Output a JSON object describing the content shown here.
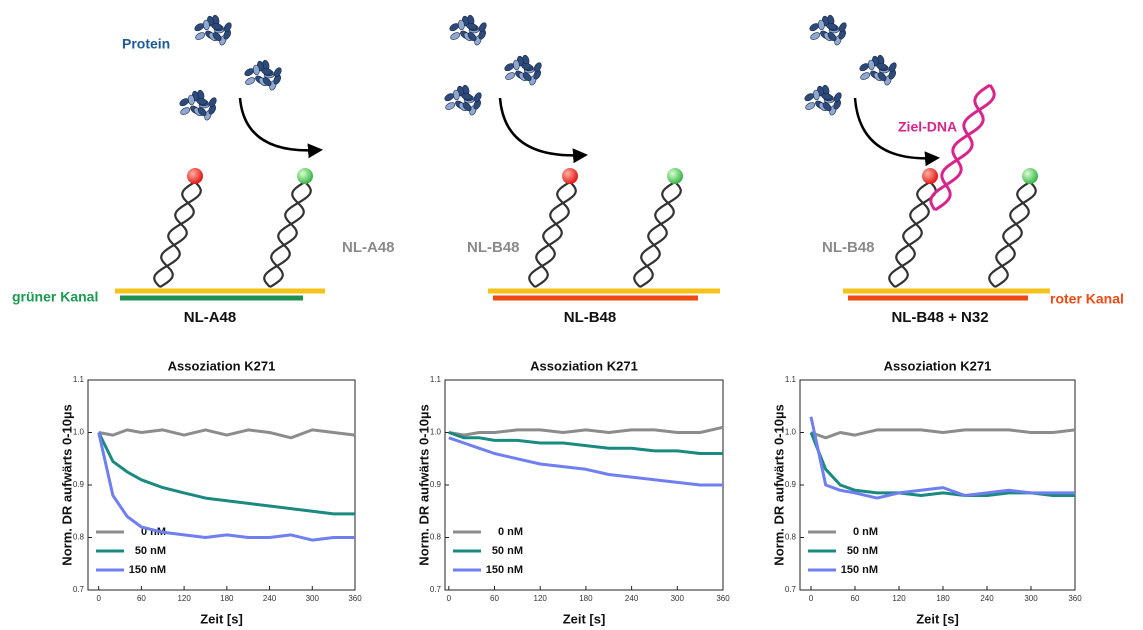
{
  "panels": [
    {
      "protein": "Protein",
      "strand_label": "NL-A48",
      "caption": "NL-A48",
      "channel": "grüner Kanal"
    },
    {
      "strand_label": "NL-B48",
      "caption": "NL-B48"
    },
    {
      "target": "Ziel-DNA",
      "strand_label": "NL-B48",
      "caption": "NL-B48 + N32",
      "channel": "roter Kanal"
    }
  ],
  "chart_data": [
    {
      "type": "line",
      "title": "Assoziation K271",
      "x_label": "Zeit [s]",
      "y_label": "Norm. DR aufwärts 0-10µs",
      "x": [
        0,
        20,
        40,
        60,
        90,
        120,
        150,
        180,
        210,
        240,
        270,
        300,
        330,
        360
      ],
      "xlim": [
        -15,
        360
      ],
      "xticks": [
        0,
        60,
        120,
        180,
        240,
        300,
        360
      ],
      "ylim": [
        0.7,
        1.1
      ],
      "yticks": [
        0.7,
        0.8,
        0.9,
        {
          "value": 1,
          "label": "1.0"
        },
        1.1
      ],
      "legend": "lower left",
      "series": [
        {
          "name": "0 nM",
          "color": "#8c8c8c",
          "values": [
            1.0,
            0.995,
            1.005,
            1.0,
            1.005,
            0.995,
            1.005,
            0.995,
            1.005,
            1.0,
            0.99,
            1.005,
            1.0,
            0.995
          ]
        },
        {
          "name": "50 nM",
          "color": "#1a8a80",
          "values": [
            1.0,
            0.945,
            0.925,
            0.91,
            0.895,
            0.885,
            0.875,
            0.87,
            0.865,
            0.86,
            0.855,
            0.85,
            0.845,
            0.845
          ]
        },
        {
          "name": "150 nM",
          "color": "#6f7ff0",
          "values": [
            1.0,
            0.88,
            0.84,
            0.82,
            0.81,
            0.805,
            0.8,
            0.805,
            0.8,
            0.8,
            0.805,
            0.795,
            0.8,
            0.8
          ]
        }
      ]
    },
    {
      "type": "line",
      "title": "Assoziation K271",
      "x_label": "Zeit [s]",
      "y_label": "Norm. DR aufwärts 0-10µs",
      "x": [
        0,
        20,
        40,
        60,
        90,
        120,
        150,
        180,
        210,
        240,
        270,
        300,
        330,
        360
      ],
      "xlim": [
        -5,
        360
      ],
      "xticks": [
        0,
        60,
        120,
        180,
        240,
        300,
        360
      ],
      "ylim": [
        0.7,
        1.1
      ],
      "yticks": [
        0.7,
        0.8,
        0.9,
        {
          "value": 1,
          "label": "1.0"
        },
        1.1
      ],
      "legend": "lower left",
      "series": [
        {
          "name": "0 nM",
          "color": "#8c8c8c",
          "values": [
            1.0,
            0.995,
            1.0,
            1.0,
            1.005,
            1.005,
            1.0,
            1.005,
            1.0,
            1.005,
            1.005,
            1.0,
            1.0,
            1.01
          ]
        },
        {
          "name": "50 nM",
          "color": "#1a8a80",
          "values": [
            1.0,
            0.99,
            0.99,
            0.985,
            0.985,
            0.98,
            0.98,
            0.975,
            0.97,
            0.97,
            0.965,
            0.965,
            0.96,
            0.96
          ]
        },
        {
          "name": "150 nM",
          "color": "#6f7ff0",
          "values": [
            0.99,
            0.98,
            0.97,
            0.96,
            0.95,
            0.94,
            0.935,
            0.93,
            0.92,
            0.915,
            0.91,
            0.905,
            0.9,
            0.9
          ]
        }
      ]
    },
    {
      "type": "line",
      "title": "Assoziation K271",
      "x_label": "Zeit [s]",
      "y_label": "Norm. DR aufwärts 0-10µs",
      "x": [
        0,
        20,
        40,
        60,
        90,
        120,
        150,
        180,
        210,
        240,
        270,
        300,
        330,
        360
      ],
      "xlim": [
        -15,
        360
      ],
      "xticks": [
        0,
        60,
        120,
        180,
        240,
        300,
        360
      ],
      "ylim": [
        0.7,
        1.1
      ],
      "yticks": [
        0.7,
        0.8,
        0.9,
        {
          "value": 1,
          "label": "1.0"
        },
        1.1
      ],
      "legend": "lower left",
      "series": [
        {
          "name": "0 nM",
          "color": "#8c8c8c",
          "values": [
            1.0,
            0.99,
            1.0,
            0.995,
            1.005,
            1.005,
            1.005,
            1.0,
            1.005,
            1.005,
            1.005,
            1.0,
            1.0,
            1.005
          ]
        },
        {
          "name": "50 nM",
          "color": "#1a8a80",
          "values": [
            1.0,
            0.93,
            0.9,
            0.89,
            0.885,
            0.885,
            0.88,
            0.885,
            0.88,
            0.88,
            0.885,
            0.885,
            0.88,
            0.88
          ]
        },
        {
          "name": "150 nM",
          "color": "#6f7ff0",
          "values": [
            1.03,
            0.9,
            0.89,
            0.885,
            0.875,
            0.885,
            0.89,
            0.895,
            0.88,
            0.885,
            0.89,
            0.885,
            0.885,
            0.885
          ]
        }
      ]
    }
  ]
}
